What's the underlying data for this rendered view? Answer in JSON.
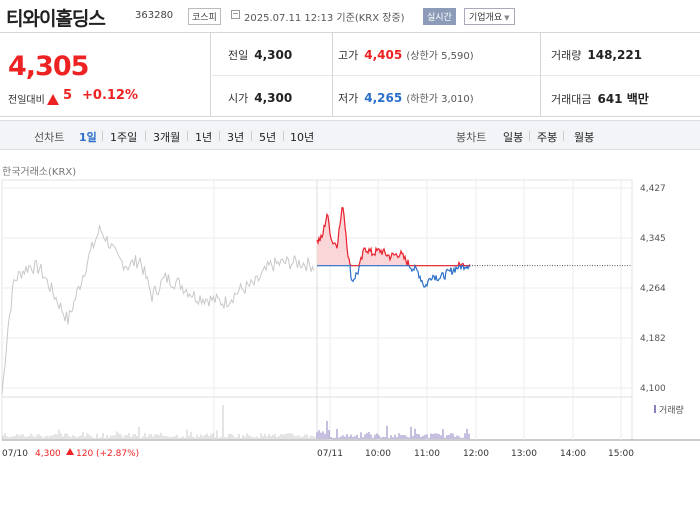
{
  "header": {
    "title": "티와이홀딩스",
    "code": "363280",
    "market": "코스피",
    "datetime": "2025.07.11 12:13 기준(KRX 장중)",
    "realtime_label": "실시간",
    "company_label": "기업개요"
  },
  "summary": {
    "price": "4,305",
    "change_label": "전일대비",
    "change": "5",
    "change_pct": "+0.12%",
    "prev_close_label": "전일",
    "prev_close": "4,300",
    "open_label": "시가",
    "open": "4,300",
    "high_label": "고가",
    "high": "4,405",
    "upper_limit": "(상한가 5,590)",
    "low_label": "저가",
    "low": "4,265",
    "lower_limit": "(하한가 3,010)",
    "volume_label": "거래량",
    "volume": "148,221",
    "amount_label": "거래대금",
    "amount": "641",
    "amount_unit": "백만"
  },
  "period_bar": {
    "chart_label": "선차트",
    "periods": [
      "1일",
      "1주일",
      "3개월",
      "1년",
      "3년",
      "5년",
      "10년"
    ],
    "selected": "1일",
    "candle_label": "봉차트",
    "candles": [
      "일봉",
      "주봉",
      "월봉"
    ]
  },
  "chart_data": {
    "type": "line",
    "source": "한국거래소(KRX)",
    "y_ticks": [
      "4,427",
      "4,345",
      "4,264",
      "4,182",
      "4,100"
    ],
    "ylim": [
      4100,
      4427
    ],
    "x_ticks": [
      "07/11",
      "10:00",
      "11:00",
      "12:00",
      "13:00",
      "14:00",
      "15:00"
    ],
    "reference_price": 4300,
    "prev_day_label": "07/10",
    "prev_day_close": "4,300",
    "prev_day_change": "120",
    "prev_day_pct": "(+2.87%)",
    "volume_legend": "거래량",
    "colors": {
      "up": "#e8212e",
      "down": "#2a6fc9",
      "prev": "#c8c8c8",
      "fill_up": "#fbd6d8"
    }
  }
}
